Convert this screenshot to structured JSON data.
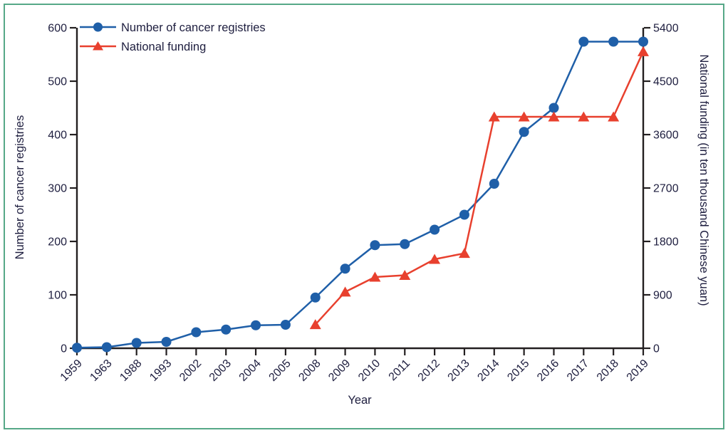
{
  "figure_frame": {
    "border_color": "#56a887"
  },
  "chart_data": {
    "type": "line",
    "title": "",
    "xlabel": "Year",
    "grid": false,
    "legend_position": "top-left",
    "categories": [
      "1959",
      "1963",
      "1988",
      "1993",
      "2002",
      "2003",
      "2004",
      "2005",
      "2008",
      "2009",
      "2010",
      "2011",
      "2012",
      "2013",
      "2014",
      "2015",
      "2016",
      "2017",
      "2018",
      "2019"
    ],
    "left_axis": {
      "label": "Number of cancer registries",
      "min": 0,
      "max": 600,
      "tick_step": 100,
      "ticks": [
        0,
        100,
        200,
        300,
        400,
        500,
        600
      ]
    },
    "right_axis": {
      "label": "National funding (in ten thousand Chinese yuan)",
      "min": 0,
      "max": 5400,
      "tick_step": 900,
      "ticks": [
        0,
        900,
        1800,
        2700,
        3600,
        4500,
        5400
      ]
    },
    "series": [
      {
        "name": "Number of cancer registries",
        "axis": "left",
        "marker": "circle",
        "color": "#1f5fa8",
        "values": [
          1,
          2,
          10,
          12,
          30,
          35,
          43,
          44,
          95,
          149,
          193,
          195,
          222,
          250,
          308,
          405,
          450,
          574,
          574,
          574
        ]
      },
      {
        "name": "National funding",
        "axis": "right",
        "marker": "triangle",
        "color": "#e8402e",
        "values": [
          null,
          null,
          null,
          null,
          null,
          null,
          null,
          null,
          400,
          950,
          1200,
          1230,
          1500,
          1600,
          3900,
          3900,
          3900,
          3900,
          3900,
          5000
        ]
      }
    ],
    "style": {
      "axis_color": "#231f20",
      "text_color": "#1e1e3f"
    }
  }
}
